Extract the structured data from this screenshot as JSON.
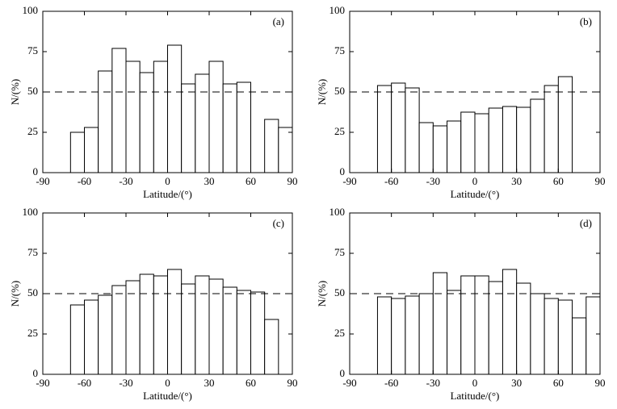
{
  "chart_data": [
    {
      "type": "histogram",
      "title": "(a)",
      "xlabel": "Latitude/(°)",
      "ylabel": "N/(%)",
      "bins": [
        -70,
        -60,
        -50,
        -40,
        -30,
        -20,
        -10,
        0,
        10,
        20,
        30,
        40,
        50,
        60,
        70,
        80,
        90
      ],
      "values": [
        25,
        28,
        63,
        77,
        69,
        62,
        69,
        79,
        55,
        61,
        69,
        55,
        56,
        0,
        33,
        28
      ],
      "xlim": [
        -90,
        90
      ],
      "xticks": [
        -90,
        -60,
        -30,
        0,
        30,
        60,
        90
      ],
      "ylim": [
        0,
        100
      ],
      "yticks": [
        0,
        25,
        50,
        75,
        100
      ],
      "hline": 50,
      "color": "#ffffff"
    },
    {
      "type": "histogram",
      "title": "(b)",
      "xlabel": "Latitude/(°)",
      "ylabel": "N/(%)",
      "bins": [
        -70,
        -60,
        -50,
        -40,
        -30,
        -20,
        -10,
        0,
        10,
        20,
        30,
        40,
        50,
        60,
        70
      ],
      "values": [
        54,
        55.5,
        52.5,
        31,
        29,
        32,
        37.5,
        36.5,
        40,
        41,
        40.5,
        45.5,
        54,
        59.5
      ],
      "xlim": [
        -90,
        90
      ],
      "xticks": [
        -90,
        -60,
        -30,
        0,
        30,
        60,
        90
      ],
      "ylim": [
        0,
        100
      ],
      "yticks": [
        0,
        25,
        50,
        75,
        100
      ],
      "hline": 50,
      "color": "#ffffff"
    },
    {
      "type": "histogram",
      "title": "(c)",
      "xlabel": "Latitude/(°)",
      "ylabel": "N/(%)",
      "bins": [
        -70,
        -60,
        -50,
        -40,
        -30,
        -20,
        -10,
        0,
        10,
        20,
        30,
        40,
        50,
        60,
        70,
        80
      ],
      "values": [
        43,
        46,
        49,
        55,
        58,
        62,
        61,
        65,
        56,
        61,
        59,
        54,
        52,
        51,
        34
      ],
      "xlim": [
        -90,
        90
      ],
      "xticks": [
        -90,
        -60,
        -30,
        0,
        30,
        60,
        90
      ],
      "ylim": [
        0,
        100
      ],
      "yticks": [
        0,
        25,
        50,
        75,
        100
      ],
      "hline": 50,
      "color": "#ffffff"
    },
    {
      "type": "histogram",
      "title": "(d)",
      "xlabel": "Latitude/(°)",
      "ylabel": "N/(%)",
      "bins": [
        -70,
        -60,
        -50,
        -40,
        -30,
        -20,
        -10,
        0,
        10,
        20,
        30,
        40,
        50,
        60,
        70,
        80,
        90
      ],
      "values": [
        48,
        47,
        48.5,
        50,
        63,
        52,
        61,
        61,
        57.5,
        65,
        56.5,
        50,
        47,
        46,
        35,
        48
      ],
      "xlim": [
        -90,
        90
      ],
      "xticks": [
        -90,
        -60,
        -30,
        0,
        30,
        60,
        90
      ],
      "ylim": [
        0,
        100
      ],
      "yticks": [
        0,
        25,
        50,
        75,
        100
      ],
      "hline": 50,
      "color": "#ffffff"
    }
  ]
}
